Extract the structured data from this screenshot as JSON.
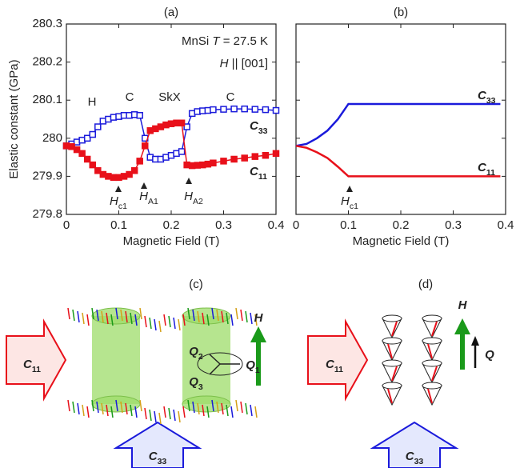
{
  "chart_data": [
    {
      "type": "line",
      "title": "(a)",
      "markers": true,
      "xlabel": "Magnetic Field (T)",
      "ylabel": "Elastic constant (GPa)",
      "x": [
        0,
        0.01,
        0.02,
        0.03,
        0.04,
        0.05,
        0.06,
        0.07,
        0.08,
        0.09,
        0.1,
        0.11,
        0.12,
        0.13,
        0.14,
        0.15,
        0.16,
        0.17,
        0.18,
        0.19,
        0.2,
        0.21,
        0.22,
        0.23,
        0.24,
        0.25,
        0.26,
        0.27,
        0.28,
        0.3,
        0.32,
        0.34,
        0.36,
        0.38,
        0.4
      ],
      "series": [
        {
          "name": [
            {
              "t": "C",
              "i": true
            },
            {
              "t": "33",
              "sub": true
            }
          ],
          "color": "#1a1adb",
          "values": [
            279.98,
            279.985,
            279.99,
            279.995,
            280.0,
            280.01,
            280.03,
            280.045,
            280.05,
            280.055,
            280.057,
            280.06,
            280.06,
            280.062,
            280.06,
            280.0,
            279.95,
            279.945,
            279.945,
            279.95,
            279.955,
            279.96,
            279.965,
            280.03,
            280.065,
            280.07,
            280.072,
            280.073,
            280.075,
            280.076,
            280.077,
            280.077,
            280.076,
            280.075,
            280.073
          ]
        },
        {
          "name": [
            {
              "t": "C",
              "i": true
            },
            {
              "t": "11",
              "sub": true
            }
          ],
          "color": "#e8101a",
          "values": [
            279.98,
            279.978,
            279.97,
            279.96,
            279.945,
            279.93,
            279.915,
            279.905,
            279.9,
            279.897,
            279.897,
            279.9,
            279.905,
            279.915,
            279.94,
            279.98,
            280.02,
            280.025,
            280.03,
            280.035,
            280.038,
            280.04,
            280.04,
            279.93,
            279.928,
            279.929,
            279.93,
            279.932,
            279.935,
            279.94,
            279.945,
            279.948,
            279.952,
            279.955,
            279.96
          ]
        }
      ],
      "xlim": [
        0,
        0.4
      ],
      "xticks": [
        0,
        0.1,
        0.2,
        0.3,
        0.4
      ],
      "ylim": [
        279.8,
        280.3
      ],
      "yticks": [
        279.8,
        279.9,
        280,
        280.1,
        280.2,
        280.3
      ],
      "show_ytick_labels": true,
      "annotations": [
        [
          {
            "t": "MnSi  "
          },
          {
            "t": "T",
            "i": true
          },
          {
            "t": " = 27.5 K"
          }
        ],
        [
          {
            "t": "H",
            "i": true
          },
          {
            "t": " || [001]"
          }
        ],
        [
          {
            "t": "H"
          }
        ],
        [
          {
            "t": "C"
          }
        ],
        [
          {
            "t": "SkX"
          }
        ],
        [
          {
            "t": "C"
          }
        ],
        [
          {
            "t": "H",
            "i": true
          },
          {
            "t": "c1",
            "sub": true
          }
        ],
        [
          {
            "t": "H",
            "i": true
          },
          {
            "t": "A1",
            "sub": true
          }
        ],
        [
          {
            "t": "H",
            "i": true
          },
          {
            "t": "A2",
            "sub": true
          }
        ]
      ]
    },
    {
      "type": "line",
      "title": "(b)",
      "markers": false,
      "xlabel": "Magnetic Field (T)",
      "x": [
        0,
        0.02,
        0.04,
        0.06,
        0.08,
        0.1,
        0.39
      ],
      "series": [
        {
          "name": [
            {
              "t": "C",
              "i": true
            },
            {
              "t": "33",
              "sub": true
            }
          ],
          "color": "#1a1adb",
          "values": [
            279.98,
            279.985,
            280.0,
            280.02,
            280.05,
            280.09,
            280.09
          ]
        },
        {
          "name": [
            {
              "t": "C",
              "i": true
            },
            {
              "t": "11",
              "sub": true
            }
          ],
          "color": "#e8101a",
          "values": [
            279.98,
            279.975,
            279.963,
            279.948,
            279.925,
            279.9,
            279.9
          ]
        }
      ],
      "xlim": [
        0,
        0.4
      ],
      "xticks": [
        0,
        0.1,
        0.2,
        0.3,
        0.4
      ],
      "ylim": [
        279.8,
        280.3
      ],
      "yticks": [
        279.8,
        279.9,
        280,
        280.1,
        280.2,
        280.3
      ],
      "show_ytick_labels": false,
      "annotations": [
        [
          {
            "t": "H",
            "i": true
          },
          {
            "t": "c1",
            "sub": true
          }
        ]
      ]
    }
  ],
  "diagrams": [
    {
      "label": "(c)",
      "labels": [
        [
          {
            "t": "C",
            "i": true
          },
          {
            "t": "11",
            "sub": true
          }
        ],
        [
          {
            "t": "C",
            "i": true
          },
          {
            "t": "33",
            "sub": true
          }
        ],
        [
          {
            "t": "H",
            "i": true
          }
        ],
        [
          {
            "t": "Q",
            "i": true
          },
          {
            "t": "1",
            "sub": true
          }
        ],
        [
          {
            "t": "Q",
            "i": true
          },
          {
            "t": "2",
            "sub": true
          }
        ],
        [
          {
            "t": "Q",
            "i": true
          },
          {
            "t": "3",
            "sub": true
          }
        ]
      ]
    },
    {
      "label": "(d)",
      "labels": [
        [
          {
            "t": "C",
            "i": true
          },
          {
            "t": "11",
            "sub": true
          }
        ],
        [
          {
            "t": "C",
            "i": true
          },
          {
            "t": "33",
            "sub": true
          }
        ],
        [
          {
            "t": "H",
            "i": true
          }
        ],
        [
          {
            "t": "Q",
            "i": true
          }
        ]
      ]
    }
  ]
}
